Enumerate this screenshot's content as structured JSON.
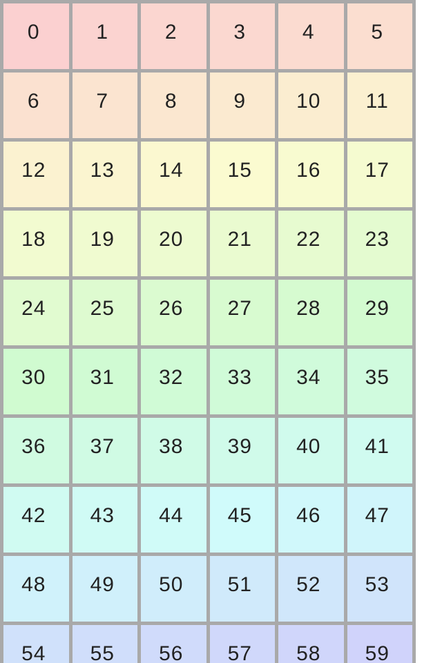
{
  "page": {
    "background_color": "#ffffff"
  },
  "grid": {
    "columns": 6,
    "rows": 10,
    "border_color": "#a9a9a9",
    "text_color": "#222222",
    "cells": [
      {
        "label": "0",
        "color": "#fbd0d0"
      },
      {
        "label": "1",
        "color": "#fbd3d0"
      },
      {
        "label": "2",
        "color": "#fbd6d0"
      },
      {
        "label": "3",
        "color": "#fbd8d0"
      },
      {
        "label": "4",
        "color": "#fbdbd0"
      },
      {
        "label": "5",
        "color": "#fbded0"
      },
      {
        "label": "6",
        "color": "#fbe1d0"
      },
      {
        "label": "7",
        "color": "#fbe4d0"
      },
      {
        "label": "8",
        "color": "#fbe7d0"
      },
      {
        "label": "9",
        "color": "#fbead0"
      },
      {
        "label": "10",
        "color": "#fbedd0"
      },
      {
        "label": "11",
        "color": "#fbf0d0"
      },
      {
        "label": "12",
        "color": "#fbf2d0"
      },
      {
        "label": "13",
        "color": "#fbf5d0"
      },
      {
        "label": "14",
        "color": "#fbf8d0"
      },
      {
        "label": "15",
        "color": "#fbfbd0"
      },
      {
        "label": "16",
        "color": "#f8fbd0"
      },
      {
        "label": "17",
        "color": "#f5fbd0"
      },
      {
        "label": "18",
        "color": "#f2fbd0"
      },
      {
        "label": "19",
        "color": "#f0fbd0"
      },
      {
        "label": "20",
        "color": "#edfbd0"
      },
      {
        "label": "21",
        "color": "#eafbd0"
      },
      {
        "label": "22",
        "color": "#e7fbd0"
      },
      {
        "label": "23",
        "color": "#e4fbd0"
      },
      {
        "label": "24",
        "color": "#e1fbd0"
      },
      {
        "label": "25",
        "color": "#defbd0"
      },
      {
        "label": "26",
        "color": "#dbfbd0"
      },
      {
        "label": "27",
        "color": "#d8fbd0"
      },
      {
        "label": "28",
        "color": "#d6fbd0"
      },
      {
        "label": "29",
        "color": "#d3fbd0"
      },
      {
        "label": "30",
        "color": "#d0fbd0"
      },
      {
        "label": "31",
        "color": "#d0fbd3"
      },
      {
        "label": "32",
        "color": "#d0fbd6"
      },
      {
        "label": "33",
        "color": "#d0fbd8"
      },
      {
        "label": "34",
        "color": "#d0fbdb"
      },
      {
        "label": "35",
        "color": "#d0fbde"
      },
      {
        "label": "36",
        "color": "#d0fbe1"
      },
      {
        "label": "37",
        "color": "#d0fbe4"
      },
      {
        "label": "38",
        "color": "#d0fbe7"
      },
      {
        "label": "39",
        "color": "#d0fbea"
      },
      {
        "label": "40",
        "color": "#d0fbed"
      },
      {
        "label": "41",
        "color": "#d0fbf0"
      },
      {
        "label": "42",
        "color": "#d0fbf2"
      },
      {
        "label": "43",
        "color": "#d0fbf5"
      },
      {
        "label": "44",
        "color": "#d0fbf8"
      },
      {
        "label": "45",
        "color": "#d0fbfb"
      },
      {
        "label": "46",
        "color": "#d0f8fb"
      },
      {
        "label": "47",
        "color": "#d0f5fb"
      },
      {
        "label": "48",
        "color": "#d0f2fb"
      },
      {
        "label": "49",
        "color": "#d0f0fb"
      },
      {
        "label": "50",
        "color": "#d0edfb"
      },
      {
        "label": "51",
        "color": "#d0eafb"
      },
      {
        "label": "52",
        "color": "#d0e7fb"
      },
      {
        "label": "53",
        "color": "#d0e4fb"
      },
      {
        "label": "54",
        "color": "#d0e1fb"
      },
      {
        "label": "55",
        "color": "#d0defb"
      },
      {
        "label": "56",
        "color": "#d0dbfb"
      },
      {
        "label": "57",
        "color": "#d0d8fb"
      },
      {
        "label": "58",
        "color": "#d0d6fb"
      },
      {
        "label": "59",
        "color": "#d0d3fb"
      }
    ]
  }
}
